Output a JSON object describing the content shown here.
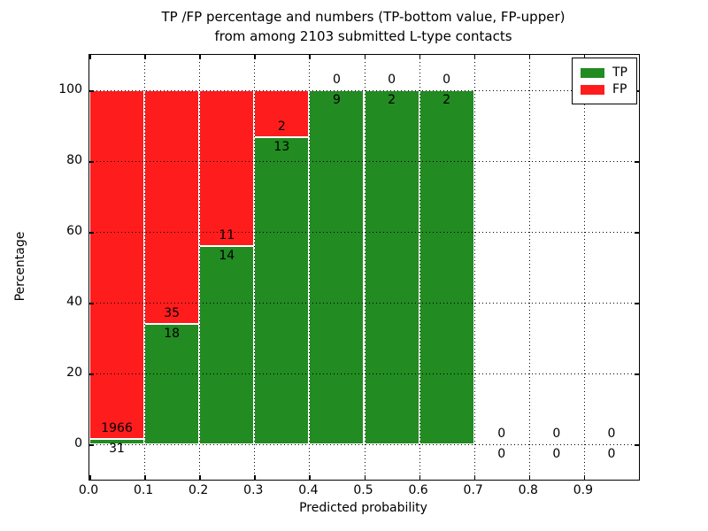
{
  "figure": {
    "title_line1": "TP /FP percentage and numbers (TP-bottom value, FP-upper)",
    "title_line2": "from among 2103 submitted L-type contacts",
    "xlabel": "Predicted probability",
    "ylabel": "Percentage"
  },
  "legend": {
    "items": [
      {
        "label": "TP",
        "color": "#228b22"
      },
      {
        "label": "FP",
        "color": "#ff1c1c"
      }
    ]
  },
  "chart_data": {
    "type": "bar",
    "stacked": true,
    "units": "percent of bin total, annotated with raw counts",
    "title": "TP /FP percentage and numbers (TP-bottom value, FP-upper) from among 2103 submitted L-type contacts",
    "xlabel": "Predicted probability",
    "ylabel": "Percentage",
    "xlim": [
      0.0,
      1.0
    ],
    "ylim": [
      -10,
      110
    ],
    "x_tick_labels": [
      "0.0",
      "0.1",
      "0.2",
      "0.3",
      "0.4",
      "0.5",
      "0.6",
      "0.7",
      "0.8",
      "0.9"
    ],
    "y_ticks": [
      0,
      20,
      40,
      60,
      80,
      100
    ],
    "grid": "dotted",
    "legend_position": "upper right",
    "total_contacts": 2103,
    "series": [
      {
        "name": "TP",
        "color": "#228b22",
        "position": "bottom"
      },
      {
        "name": "FP",
        "color": "#ff1c1c",
        "position": "top"
      }
    ],
    "bins": [
      {
        "range": [
          0.0,
          0.1
        ],
        "tp": 31,
        "fp": 1966
      },
      {
        "range": [
          0.1,
          0.2
        ],
        "tp": 18,
        "fp": 35
      },
      {
        "range": [
          0.2,
          0.3
        ],
        "tp": 14,
        "fp": 11
      },
      {
        "range": [
          0.3,
          0.4
        ],
        "tp": 13,
        "fp": 2
      },
      {
        "range": [
          0.4,
          0.5
        ],
        "tp": 9,
        "fp": 0
      },
      {
        "range": [
          0.5,
          0.6
        ],
        "tp": 2,
        "fp": 0
      },
      {
        "range": [
          0.6,
          0.7
        ],
        "tp": 2,
        "fp": 0
      },
      {
        "range": [
          0.7,
          0.8
        ],
        "tp": 0,
        "fp": 0
      },
      {
        "range": [
          0.8,
          0.9
        ],
        "tp": 0,
        "fp": 0
      },
      {
        "range": [
          0.9,
          1.0
        ],
        "tp": 0,
        "fp": 0
      }
    ]
  }
}
